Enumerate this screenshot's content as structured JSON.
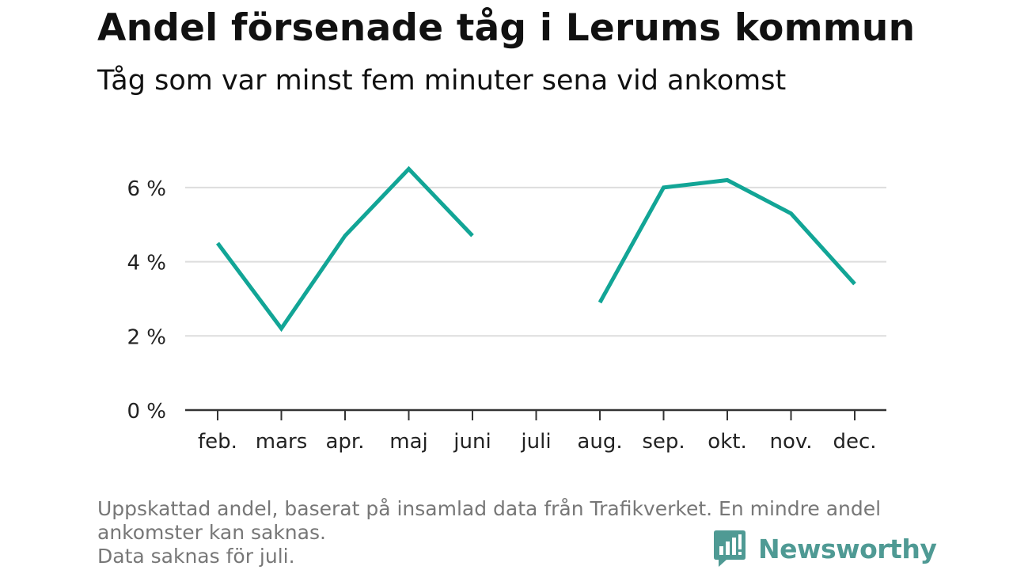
{
  "title": "Andel försenade tåg i Lerums kommun",
  "subtitle": "Tåg som var minst fem minuter sena vid ankomst",
  "note_lines": [
    "Uppskattad andel, baserat på insamlad data från Trafikverket. En mindre andel",
    "ankomster kan saknas.",
    "Data saknas för juli."
  ],
  "brand": {
    "name": "Newsworthy",
    "icon": "bar-chart-icon",
    "color": "#4f9a94"
  },
  "colors": {
    "line": "#12a596",
    "grid": "#dddddd",
    "axis": "#333333",
    "text": "#222222"
  },
  "chart_data": {
    "type": "line",
    "title": "Andel försenade tåg i Lerums kommun",
    "subtitle": "Tåg som var minst fem minuter sena vid ankomst",
    "xlabel": "",
    "ylabel": "",
    "categories": [
      "feb.",
      "mars",
      "apr.",
      "maj",
      "juni",
      "juli",
      "aug.",
      "sep.",
      "okt.",
      "nov.",
      "dec."
    ],
    "series": [
      {
        "name": "Andel försenade",
        "values": [
          4.5,
          2.2,
          4.7,
          6.5,
          4.7,
          null,
          2.9,
          6.0,
          6.2,
          5.3,
          3.4
        ]
      }
    ],
    "yticks": [
      0,
      2,
      4,
      6
    ],
    "ytick_labels": [
      "0 %",
      "2 %",
      "4 %",
      "6 %"
    ],
    "ylim": [
      0,
      7
    ],
    "grid": true,
    "legend": "none"
  }
}
